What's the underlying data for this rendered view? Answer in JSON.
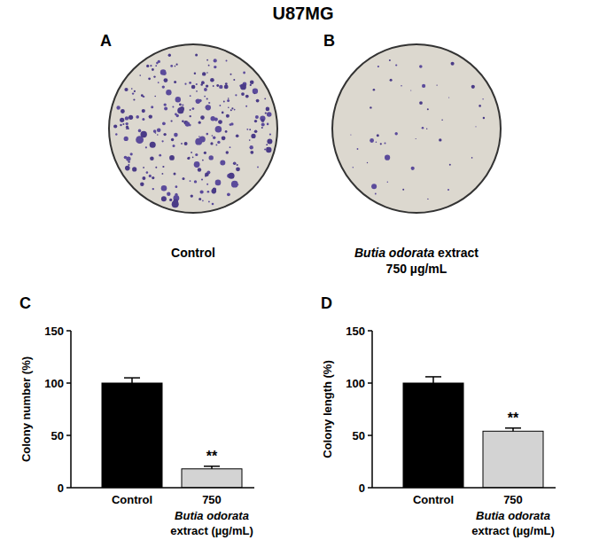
{
  "title": "U87MG",
  "images": [
    {
      "letter": "A",
      "caption": [
        [
          {
            "text": "Control",
            "style": "normal"
          }
        ]
      ]
    },
    {
      "letter": "B",
      "caption": [
        [
          {
            "text": "Butia odorata",
            "style": "italic"
          },
          {
            "text": " extract",
            "style": "normal"
          }
        ],
        [
          {
            "text": "750 µg/mL",
            "style": "normal"
          }
        ]
      ]
    }
  ],
  "chart_data": [
    {
      "type": "bar",
      "letter": "C",
      "categories": [
        "Control",
        "750"
      ],
      "values": [
        100,
        18
      ],
      "errors": [
        5,
        2.5
      ],
      "colors": [
        "#000000",
        "#d3d3d3"
      ],
      "significance": [
        null,
        "**"
      ],
      "ylim": [
        0,
        150
      ],
      "yticks": [
        0,
        50,
        100,
        150
      ],
      "y_label": "Colony number (%)",
      "x_label": [
        "Butia odorata",
        "extract (µg/mL)"
      ]
    },
    {
      "type": "bar",
      "letter": "D",
      "categories": [
        "Control",
        "750"
      ],
      "values": [
        100,
        54
      ],
      "errors": [
        6,
        3
      ],
      "colors": [
        "#000000",
        "#d3d3d3"
      ],
      "significance": [
        null,
        "**"
      ],
      "ylim": [
        0,
        150
      ],
      "yticks": [
        0,
        50,
        100,
        150
      ],
      "y_label": "Colony length (%)",
      "x_label": [
        "Butia odorata",
        "extract (µg/mL)"
      ]
    }
  ]
}
